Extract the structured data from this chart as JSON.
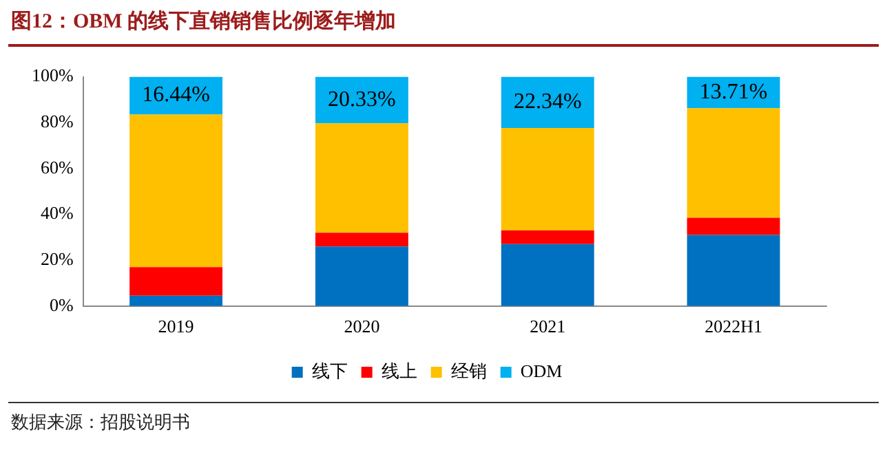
{
  "chart_data": {
    "type": "bar",
    "title": "图12：OBM 的线下直销销售比例逐年增加",
    "categories": [
      "2019",
      "2020",
      "2021",
      "2022H1"
    ],
    "stacked": true,
    "series": [
      {
        "name": "线下",
        "color": "#0070c0",
        "values": [
          4.5,
          26,
          27,
          31
        ]
      },
      {
        "name": "线上",
        "color": "#ff0000",
        "values": [
          12.5,
          6,
          6,
          7.5
        ]
      },
      {
        "name": "经销",
        "color": "#ffc000",
        "values": [
          66.56,
          47.67,
          44.66,
          47.79
        ]
      },
      {
        "name": "ODM",
        "color": "#00b0f0",
        "values": [
          16.44,
          20.33,
          22.34,
          13.71
        ],
        "value_labels": [
          "16.44%",
          "20.33%",
          "22.34%",
          "13.71%"
        ]
      }
    ],
    "ylim": [
      0,
      100
    ],
    "yticks": [
      {
        "value": 0,
        "label": "0%"
      },
      {
        "value": 20,
        "label": "20%"
      },
      {
        "value": 40,
        "label": "40%"
      },
      {
        "value": 60,
        "label": "60%"
      },
      {
        "value": 80,
        "label": "80%"
      },
      {
        "value": 100,
        "label": "100%"
      }
    ],
    "grid": false,
    "legend": "bottom",
    "annotations": [
      "数据来源：招股说明书"
    ]
  }
}
